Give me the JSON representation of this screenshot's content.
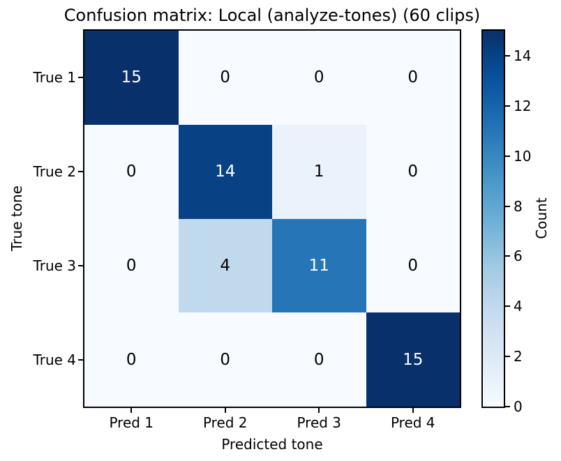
{
  "figure": {
    "background": "#ffffff",
    "text_color": "#000000"
  },
  "chart_data": {
    "type": "heatmap",
    "title": "Confusion matrix: Local (analyze-tones) (60 clips)",
    "xlabel": "Predicted tone",
    "ylabel": "True tone",
    "x_ticklabels": [
      "Pred 1",
      "Pred 2",
      "Pred 3",
      "Pred 4"
    ],
    "y_ticklabels": [
      "True 1",
      "True 2",
      "True 3",
      "True 4"
    ],
    "matrix": [
      [
        15,
        0,
        0,
        0
      ],
      [
        0,
        14,
        1,
        0
      ],
      [
        0,
        4,
        11,
        0
      ],
      [
        0,
        0,
        0,
        15
      ]
    ],
    "colormap": "Blues",
    "colormap_stops": [
      "#f7fbff",
      "#deebf7",
      "#c6dbef",
      "#9ecae1",
      "#6baed6",
      "#4292c6",
      "#2171b5",
      "#08519c",
      "#08306b"
    ],
    "cell_colors": [
      [
        "#08306b",
        "#f7fbff",
        "#f7fbff",
        "#f7fbff"
      ],
      [
        "#f7fbff",
        "#084285",
        "#eaf3fb",
        "#f7fbff"
      ],
      [
        "#f7fbff",
        "#c1d9ed",
        "#2575b7",
        "#f7fbff"
      ],
      [
        "#f7fbff",
        "#f7fbff",
        "#f7fbff",
        "#08306b"
      ]
    ],
    "annotation_color_light": "#ffffff",
    "annotation_color_dark": "#000000",
    "colorbar": {
      "label": "Count",
      "ticks": [
        0,
        2,
        4,
        6,
        8,
        10,
        12,
        14
      ],
      "vmin": 0,
      "vmax": 15,
      "position": "right"
    },
    "grid": "off",
    "legend": "none"
  }
}
